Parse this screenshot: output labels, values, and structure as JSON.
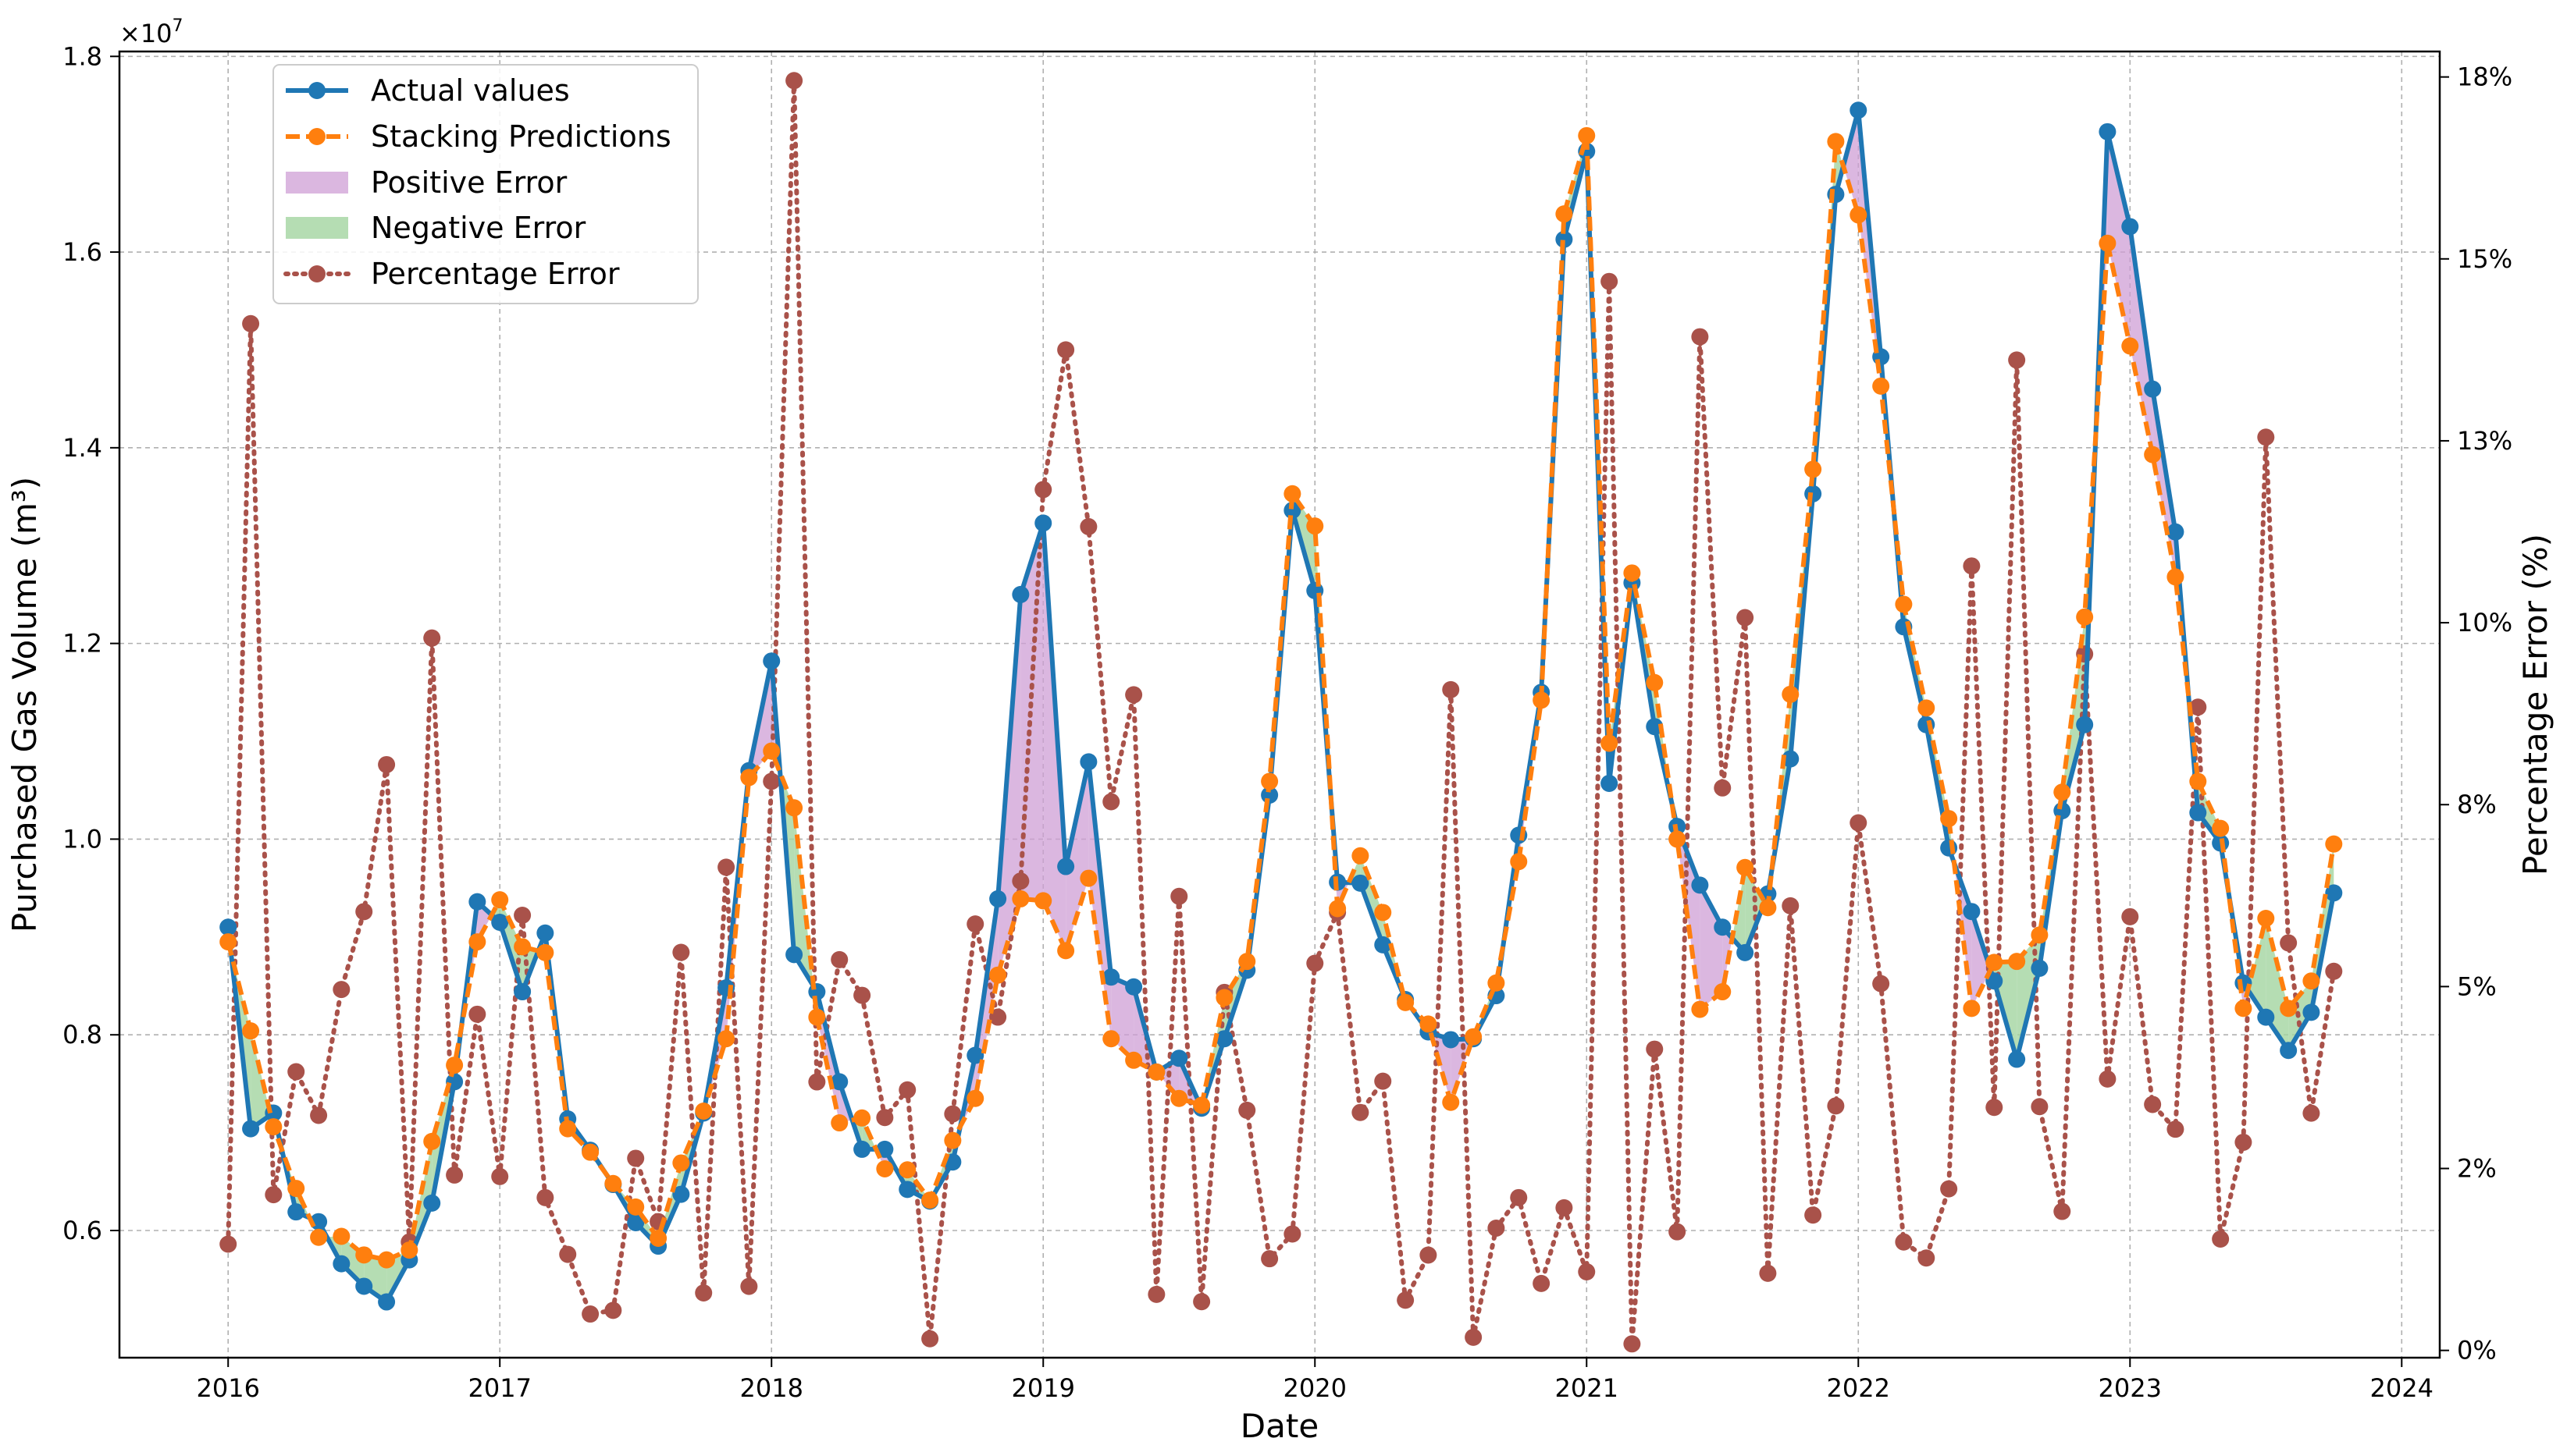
{
  "chart_data": {
    "type": "line",
    "xlabel": "Date",
    "ylabel": "Purchased Gas Volume (m³)",
    "y2label": "Percentage Error (%)",
    "yscale_label": "×10",
    "yscale_exp": "7",
    "ylim": [
      4.7,
      18.05
    ],
    "y2lim": [
      -0.1,
      17.85
    ],
    "xlim": [
      2015.6,
      2024.14
    ],
    "x_ticks": [
      2016,
      2017,
      2018,
      2019,
      2020,
      2021,
      2022,
      2023,
      2024
    ],
    "x_tick_labels": [
      "2016",
      "2017",
      "2018",
      "2019",
      "2020",
      "2021",
      "2022",
      "2023",
      "2024"
    ],
    "y_ticks": [
      6,
      8,
      10,
      12,
      14,
      16,
      18
    ],
    "y_tick_labels": [
      "0.6",
      "0.8",
      "1.0",
      "1.2",
      "1.4",
      "1.6",
      "1.8"
    ],
    "y2_ticks": [
      0,
      2.5,
      5,
      7.5,
      10,
      12.5,
      15,
      17.5
    ],
    "y2_tick_labels": [
      "0%",
      "2%",
      "5%",
      "8%",
      "10%",
      "13%",
      "15%",
      "18%"
    ],
    "grid": true,
    "legend_position": "top-left",
    "legend": [
      "Actual values",
      "Stacking Predictions",
      "Positive Error",
      "Negative Error",
      "Percentage Error"
    ],
    "x": [
      2016.0,
      2016.083,
      2016.167,
      2016.25,
      2016.333,
      2016.417,
      2016.5,
      2016.583,
      2016.667,
      2016.75,
      2016.833,
      2016.917,
      2017.0,
      2017.083,
      2017.167,
      2017.25,
      2017.333,
      2017.417,
      2017.5,
      2017.583,
      2017.667,
      2017.75,
      2017.833,
      2017.917,
      2018.0,
      2018.083,
      2018.167,
      2018.25,
      2018.333,
      2018.417,
      2018.5,
      2018.583,
      2018.667,
      2018.75,
      2018.833,
      2018.917,
      2019.0,
      2019.083,
      2019.167,
      2019.25,
      2019.333,
      2019.417,
      2019.5,
      2019.583,
      2019.667,
      2019.75,
      2019.833,
      2019.917,
      2020.0,
      2020.083,
      2020.167,
      2020.25,
      2020.333,
      2020.417,
      2020.5,
      2020.583,
      2020.667,
      2020.75,
      2020.833,
      2020.917,
      2021.0,
      2021.083,
      2021.167,
      2021.25,
      2021.333,
      2021.417,
      2021.5,
      2021.583,
      2021.667,
      2021.75,
      2021.833,
      2021.917,
      2022.0,
      2022.083,
      2022.167,
      2022.25,
      2022.333,
      2022.417,
      2022.5,
      2022.583,
      2022.667,
      2022.75,
      2022.833,
      2022.917,
      2023.0,
      2023.083,
      2023.167,
      2023.25,
      2023.333,
      2023.417,
      2023.5,
      2023.583,
      2023.667,
      2023.75
    ],
    "series": [
      {
        "name": "Actual values",
        "color": "#1f77b4",
        "axis": "left",
        "values": [
          9.1,
          7.04,
          7.2,
          6.19,
          6.09,
          5.66,
          5.43,
          5.27,
          5.7,
          6.28,
          7.52,
          9.36,
          9.15,
          8.44,
          9.04,
          7.14,
          6.82,
          6.47,
          6.08,
          5.84,
          6.37,
          7.2,
          8.48,
          10.7,
          11.82,
          8.82,
          8.44,
          7.52,
          6.83,
          6.83,
          6.42,
          6.3,
          6.7,
          7.79,
          9.39,
          12.5,
          13.23,
          9.72,
          10.79,
          8.59,
          8.49,
          7.62,
          7.76,
          7.25,
          7.96,
          8.66,
          10.45,
          13.36,
          12.54,
          9.56,
          9.55,
          8.92,
          8.36,
          8.03,
          7.95,
          7.96,
          8.4,
          10.04,
          11.5,
          16.13,
          17.03,
          10.57,
          12.62,
          11.15,
          10.13,
          9.53,
          9.1,
          8.84,
          9.44,
          10.82,
          13.53,
          16.59,
          17.45,
          14.93,
          12.17,
          11.17,
          9.91,
          9.26,
          8.55,
          7.75,
          8.68,
          10.29,
          11.17,
          17.23,
          16.26,
          14.6,
          13.14,
          10.27,
          9.96,
          8.53,
          8.18,
          7.84,
          8.23,
          9.45
        ]
      },
      {
        "name": "Stacking Predictions",
        "color": "#ff7f0e",
        "axis": "left",
        "values": [
          8.95,
          8.04,
          7.06,
          6.43,
          5.93,
          5.94,
          5.75,
          5.7,
          5.8,
          6.91,
          7.69,
          8.95,
          9.38,
          8.9,
          8.84,
          7.04,
          6.8,
          6.48,
          6.24,
          5.92,
          6.69,
          7.22,
          7.96,
          10.63,
          10.9,
          10.32,
          8.18,
          7.1,
          7.15,
          6.63,
          6.62,
          6.31,
          6.92,
          7.35,
          8.61,
          9.39,
          9.37,
          8.86,
          9.6,
          7.96,
          7.74,
          7.62,
          7.35,
          7.28,
          8.38,
          8.75,
          10.59,
          13.53,
          13.2,
          9.29,
          9.83,
          9.25,
          8.33,
          8.11,
          7.31,
          7.98,
          8.53,
          9.77,
          11.42,
          16.39,
          17.19,
          10.98,
          12.72,
          11.6,
          10.0,
          8.26,
          8.44,
          9.71,
          9.3,
          11.48,
          13.78,
          17.13,
          16.38,
          14.63,
          12.4,
          11.34,
          10.21,
          8.27,
          8.74,
          8.75,
          9.02,
          10.48,
          12.27,
          16.09,
          15.04,
          13.93,
          12.68,
          10.59,
          10.11,
          8.27,
          9.19,
          8.27,
          8.55,
          9.95
        ]
      },
      {
        "name": "Percentage Error",
        "color": "#a9524a",
        "axis": "right",
        "values": [
          1.46,
          14.11,
          2.14,
          3.83,
          3.23,
          4.96,
          6.03,
          8.05,
          1.49,
          9.79,
          2.41,
          4.62,
          2.39,
          5.98,
          2.1,
          1.32,
          0.5,
          0.55,
          2.64,
          1.77,
          5.47,
          0.79,
          6.64,
          0.88,
          7.82,
          17.45,
          3.69,
          5.37,
          4.88,
          3.2,
          3.58,
          0.16,
          3.25,
          5.86,
          4.58,
          6.45,
          11.83,
          13.75,
          11.32,
          7.54,
          9.01,
          0.77,
          6.24,
          0.67,
          4.92,
          3.3,
          1.26,
          1.6,
          5.32,
          6.02,
          3.27,
          3.7,
          0.69,
          1.31,
          9.08,
          0.18,
          1.68,
          2.1,
          0.92,
          1.96,
          1.08,
          14.69,
          0.09,
          4.14,
          1.63,
          13.93,
          7.73,
          10.07,
          1.06,
          6.11,
          1.86,
          3.36,
          7.25,
          5.04,
          1.49,
          1.27,
          2.22,
          10.78,
          3.34,
          13.61,
          3.35,
          1.91,
          9.57,
          3.73,
          5.96,
          3.38,
          3.04,
          8.84,
          1.53,
          2.86,
          12.55,
          5.6,
          3.26,
          5.21
        ]
      }
    ]
  }
}
